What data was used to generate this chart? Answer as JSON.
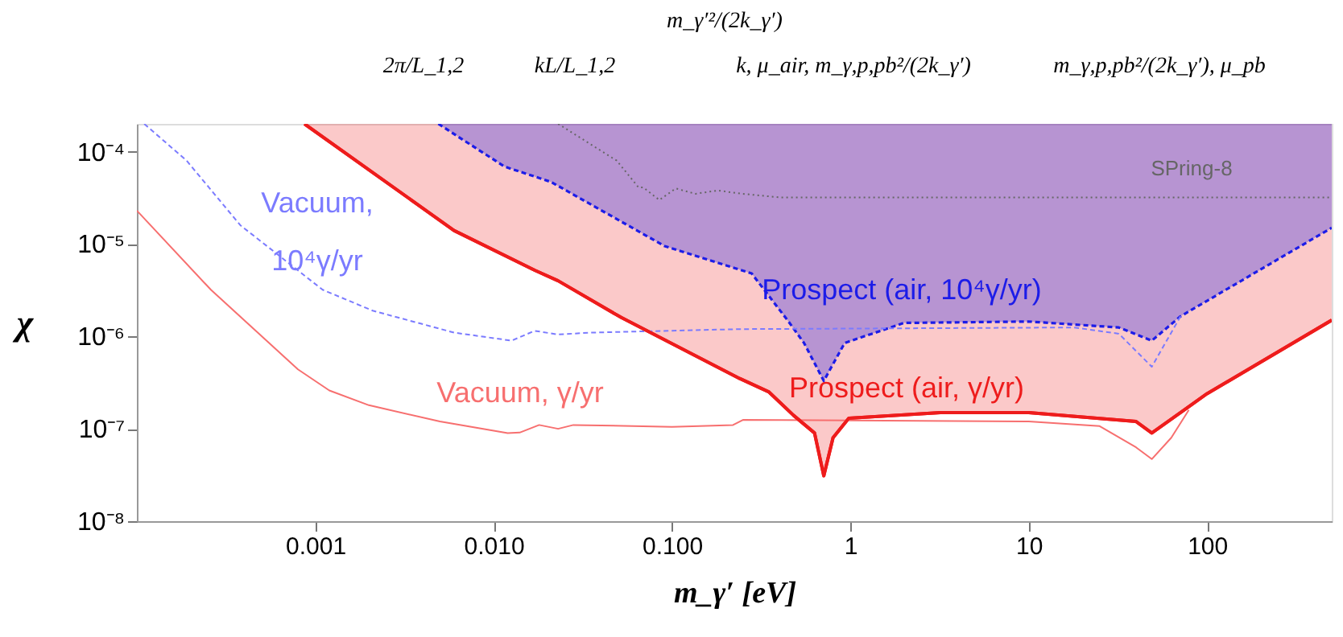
{
  "chart_data": {
    "type": "line",
    "xlabel": "m_γ′  [eV]",
    "ylabel": "χ",
    "grid": false,
    "log": "xy",
    "xlim": [
      0.0001,
      500
    ],
    "ylim": [
      1e-08,
      0.0002
    ],
    "xticks": [
      {
        "value": 0.001,
        "label": "0.001"
      },
      {
        "value": 0.01,
        "label": "0.010"
      },
      {
        "value": 0.1,
        "label": "0.100"
      },
      1,
      10,
      100
    ],
    "yticks": [
      {
        "value": 1e-08,
        "label": "10⁻⁸"
      },
      {
        "value": 1e-07,
        "label": "10⁻⁷"
      },
      {
        "value": 1e-06,
        "label": "10⁻⁶"
      },
      {
        "value": 1e-05,
        "label": "10⁻⁵"
      },
      {
        "value": 0.0001,
        "label": "10⁻⁴"
      }
    ],
    "annotations": [
      "2π/L_1,2",
      "kL/L_1,2",
      "m_γ′²/(2k_γ′)",
      "k, μ_air, m_γ,p,pb²/(2k_γ′)",
      "m_γ,p,pb²/(2k_γ′), μ_pb"
    ],
    "series": [
      {
        "name": "Prospect (air, γ/yr)",
        "color": "#ee1c1c",
        "line_style": "solid",
        "x": [
          0.00087,
          0.006,
          0.017,
          0.023,
          0.052,
          0.24,
          0.35,
          0.48,
          0.63,
          0.71,
          0.8,
          0.98,
          3.2,
          10,
          40,
          49,
          100,
          500
        ],
        "values": [
          0.0002,
          1.4e-05,
          5.2e-06,
          4e-06,
          1.6e-06,
          3.5e-07,
          2.5e-07,
          1.4e-07,
          9e-08,
          3.1e-08,
          8e-08,
          1.3e-07,
          1.5e-07,
          1.5e-07,
          1.2e-07,
          9e-08,
          2.4e-07,
          1.5e-06
        ],
        "lower": [
          0.0002,
          1.4e-05,
          5.2e-06,
          4e-06,
          1.6e-06,
          3.5e-07,
          2.5e-07,
          1.4e-07,
          9e-08,
          3.1e-08,
          8e-08,
          1.3e-07,
          1.5e-07,
          1.5e-07,
          1.2e-07,
          9e-08,
          2.4e-07,
          1.5e-06
        ],
        "upper": [
          0.0002,
          0.0002,
          0.0002,
          0.0002,
          0.0002,
          0.0002,
          0.0002,
          0.0002,
          0.0002,
          0.0002,
          0.0002,
          0.0002,
          0.0002,
          0.0002,
          0.0002,
          0.0002,
          0.0002,
          0.0002
        ]
      },
      {
        "name": "Prospect (air, 10⁴γ/yr)",
        "color": "#1c1ce8",
        "line_style": "dashed",
        "x": [
          0.0049,
          0.0115,
          0.021,
          0.091,
          0.28,
          0.45,
          0.55,
          0.71,
          0.93,
          2,
          10,
          32,
          49,
          71,
          500
        ],
        "values": [
          0.0002,
          6.9e-05,
          4.7e-05,
          9.5e-06,
          4.8e-06,
          1.45e-06,
          8.5e-07,
          3.3e-07,
          8.5e-07,
          1.4e-06,
          1.45e-06,
          1.25e-06,
          9e-07,
          1.65e-06,
          1.5e-05
        ],
        "lower": [
          0.0002,
          6.9e-05,
          4.7e-05,
          9.5e-06,
          4.8e-06,
          1.45e-06,
          8.5e-07,
          3.3e-07,
          8.5e-07,
          1.4e-06,
          1.45e-06,
          1.25e-06,
          9e-07,
          1.65e-06,
          1.5e-05
        ],
        "upper": [
          0.0002,
          0.0002,
          0.0002,
          0.0002,
          0.0002,
          0.0002,
          0.0002,
          0.0002,
          0.0002,
          0.0002,
          0.0002,
          0.0002,
          0.0002,
          0.0002,
          0.0002
        ]
      },
      {
        "name": "Vacuum, γ/yr",
        "color": "#f76f6f",
        "line_style": "solid",
        "x": [
          0.0001,
          0.00026,
          0.0008,
          0.0012,
          0.002,
          0.005,
          0.012,
          0.014,
          0.018,
          0.023,
          0.028,
          0.1,
          0.22,
          0.25,
          10,
          25,
          40,
          49,
          63,
          79
        ],
        "values": [
          2.3e-05,
          3.2e-06,
          4.4e-07,
          2.6e-07,
          1.8e-07,
          1.2e-07,
          9e-08,
          9.1e-08,
          1.1e-07,
          1e-07,
          1.1e-07,
          1.05e-07,
          1.1e-07,
          1.25e-07,
          1.2e-07,
          1.07e-07,
          6.3e-08,
          4.7e-08,
          8e-08,
          1.6e-07
        ]
      },
      {
        "name": "Vacuum, 10⁴γ/yr",
        "color": "#7b7bff",
        "line_style": "dashed",
        "x": [
          0.00011,
          0.00019,
          0.00038,
          0.0011,
          0.0021,
          0.006,
          0.0126,
          0.017,
          0.023,
          0.035,
          0.24,
          18,
          32,
          49,
          71
        ],
        "values": [
          0.0002,
          8e-05,
          1.6e-05,
          3.2e-06,
          1.9e-06,
          1.1e-06,
          9e-07,
          1.15e-06,
          1.05e-06,
          1.1e-06,
          1.2e-06,
          1.25e-06,
          1.07e-06,
          4.7e-07,
          1.65e-06
        ]
      },
      {
        "name": "SPring-8",
        "color": "#666666",
        "line_style": "dotted",
        "x": [
          0.023,
          0.049,
          0.065,
          0.069,
          0.085,
          0.105,
          0.135,
          0.18,
          0.25,
          0.4,
          500
        ],
        "values": [
          0.0002,
          8e-05,
          4.1e-05,
          4.1e-05,
          3e-05,
          4e-05,
          3.5e-05,
          3.8e-05,
          3.5e-05,
          3.2e-05,
          3.2e-05
        ]
      }
    ]
  }
}
